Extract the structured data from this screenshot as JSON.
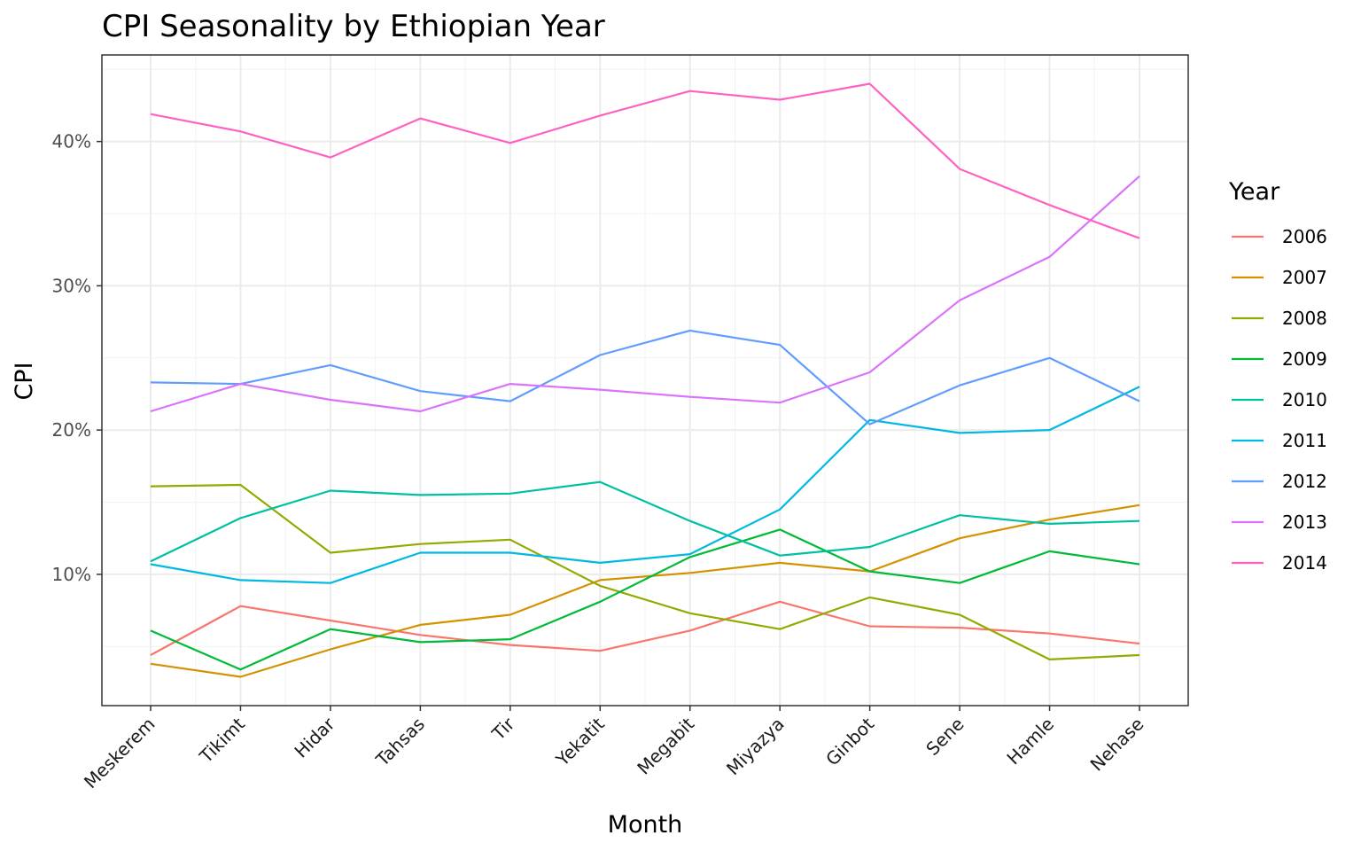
{
  "chart_data": {
    "type": "line",
    "title": "CPI Seasonality by Ethiopian Year",
    "xlabel": "Month",
    "ylabel": "CPI",
    "categories": [
      "Meskerem",
      "Tikimt",
      "Hidar",
      "Tahsas",
      "Tir",
      "Yekatit",
      "Megabit",
      "Miyazya",
      "Ginbot",
      "Sene",
      "Hamle",
      "Nehase"
    ],
    "ylim": [
      0.9,
      46.0
    ],
    "y_ticks": [
      10,
      20,
      30,
      40
    ],
    "y_tick_labels": [
      "10%",
      "20%",
      "30%",
      "40%"
    ],
    "grid": true,
    "legend": {
      "title": "Year",
      "position": "right"
    },
    "series": [
      {
        "name": "2006",
        "color": "#F8766D",
        "values": [
          4.4,
          7.8,
          6.8,
          5.8,
          5.1,
          4.7,
          6.1,
          8.1,
          6.4,
          6.3,
          5.9,
          5.2
        ]
      },
      {
        "name": "2007",
        "color": "#D39200",
        "values": [
          3.8,
          2.9,
          4.8,
          6.5,
          7.2,
          9.6,
          10.1,
          10.8,
          10.2,
          12.5,
          13.8,
          14.8
        ]
      },
      {
        "name": "2008",
        "color": "#93AA00",
        "values": [
          16.1,
          16.2,
          11.5,
          12.1,
          12.4,
          9.2,
          7.3,
          6.2,
          8.4,
          7.2,
          4.1,
          4.4
        ]
      },
      {
        "name": "2009",
        "color": "#00BA38",
        "values": [
          6.1,
          3.4,
          6.2,
          5.3,
          5.5,
          8.1,
          11.2,
          13.1,
          10.2,
          9.4,
          11.6,
          10.7
        ]
      },
      {
        "name": "2010",
        "color": "#00C19F",
        "values": [
          10.9,
          13.9,
          15.8,
          15.5,
          15.6,
          16.4,
          13.7,
          11.3,
          11.9,
          14.1,
          13.5,
          13.7
        ]
      },
      {
        "name": "2011",
        "color": "#00B9E3",
        "values": [
          10.7,
          9.6,
          9.4,
          11.5,
          11.5,
          10.8,
          11.4,
          14.5,
          20.7,
          19.8,
          20.0,
          23.0
        ]
      },
      {
        "name": "2012",
        "color": "#619CFF",
        "values": [
          23.3,
          23.2,
          24.5,
          22.7,
          22.0,
          25.2,
          26.9,
          25.9,
          20.4,
          23.1,
          25.0,
          22.0
        ]
      },
      {
        "name": "2013",
        "color": "#DB72FB",
        "values": [
          21.3,
          23.2,
          22.1,
          21.3,
          23.2,
          22.8,
          22.3,
          21.9,
          24.0,
          29.0,
          32.0,
          37.6
        ]
      },
      {
        "name": "2014",
        "color": "#FF61C3",
        "values": [
          41.9,
          40.7,
          38.9,
          41.6,
          39.9,
          41.8,
          43.5,
          42.9,
          44.0,
          38.1,
          35.6,
          33.3
        ]
      }
    ]
  }
}
